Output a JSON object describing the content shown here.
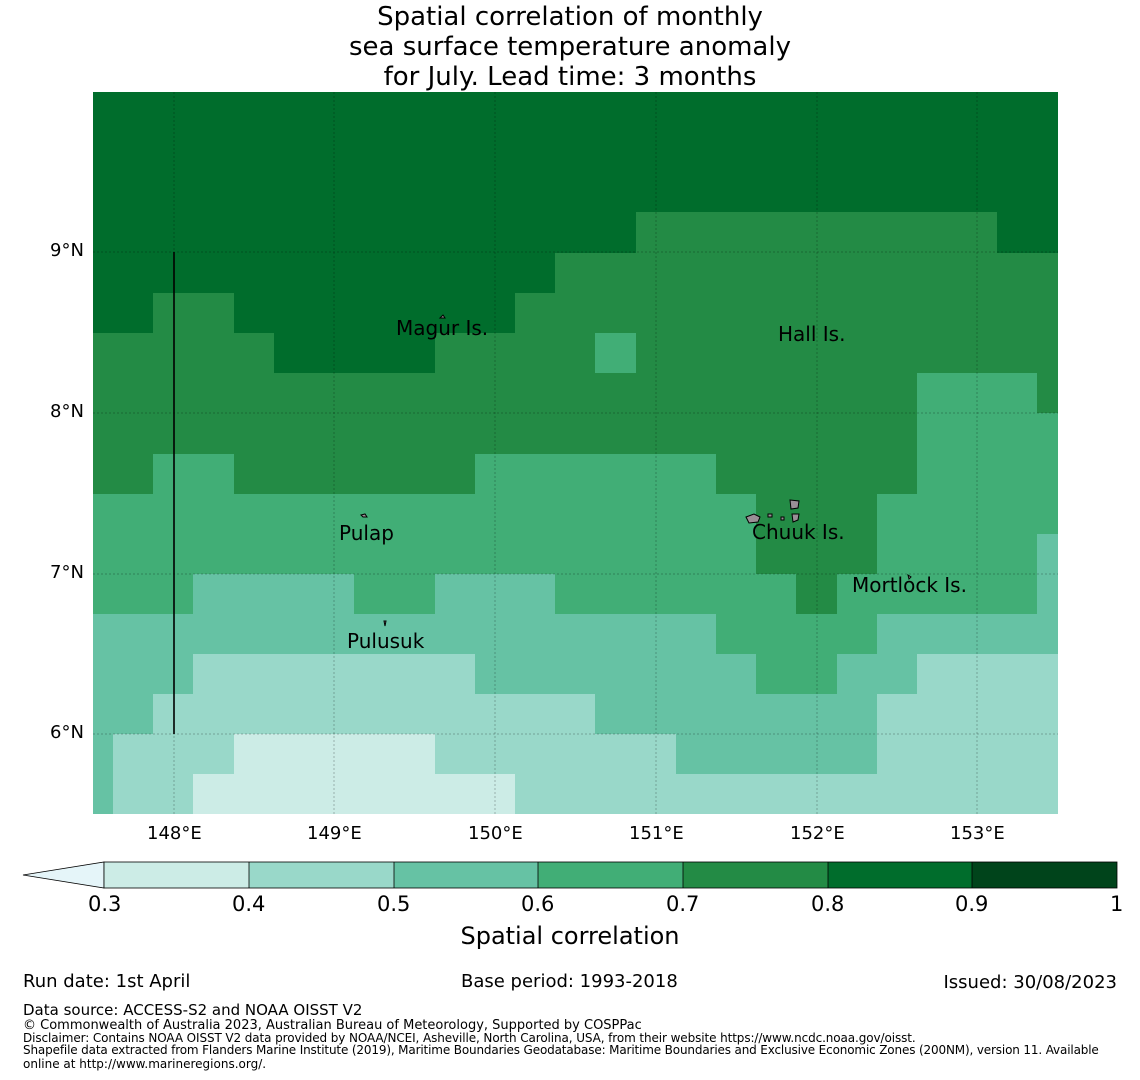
{
  "title": [
    "Spatial correlation of monthly",
    "sea surface temperature anomaly",
    "for July. Lead time: 3 months"
  ],
  "map": {
    "lat_labels": [
      "9°N",
      "8°N",
      "7°N",
      "6°N"
    ],
    "lon_labels": [
      "148°E",
      "149°E",
      "150°E",
      "151°E",
      "152°E",
      "153°E"
    ],
    "places": {
      "magur": "Magur Is.",
      "hall": "Hall Is.",
      "pulap": "Pulap",
      "chuuk": "Chuuk Is.",
      "mortlock": "Mortlock Is.",
      "pulusuk": "Pulusuk"
    }
  },
  "colorbar": {
    "ticks": [
      "0.3",
      "0.4",
      "0.5",
      "0.6",
      "0.7",
      "0.8",
      "0.9",
      "1"
    ],
    "colors": [
      "#ccece6",
      "#99d8c9",
      "#66c2a4",
      "#41ae76",
      "#238b45",
      "#006d2c",
      "#00441b"
    ],
    "under_color": "#e5f5f9",
    "label": "Spatial correlation"
  },
  "footer": {
    "run_date": "Run date: 1st April",
    "base_period": "Base period: 1993-2018",
    "issued": "Issued: 30/08/2023",
    "data_source": "Data source: ACCESS-S2 and NOAA OISST V2",
    "copyright": "© Commonwealth of Australia 2023, Australian Bureau of Meteorology, Supported by COSPPac",
    "disclaimer": "Disclaimer: Contains NOAA OISST V2 data provided by NOAA/NCEI, Asheville, North Carolina, USA, from their website https://www.ncdc.noaa.gov/oisst.",
    "shapefile_1": "Shapefile data extracted from Flanders Marine Institute (2019), Maritime Boundaries Geodatabase: Maritime Boundaries and Exclusive Economic Zones (200NM), version 11. Available",
    "shapefile_2": "online at http://www.marineregions.org/."
  }
}
